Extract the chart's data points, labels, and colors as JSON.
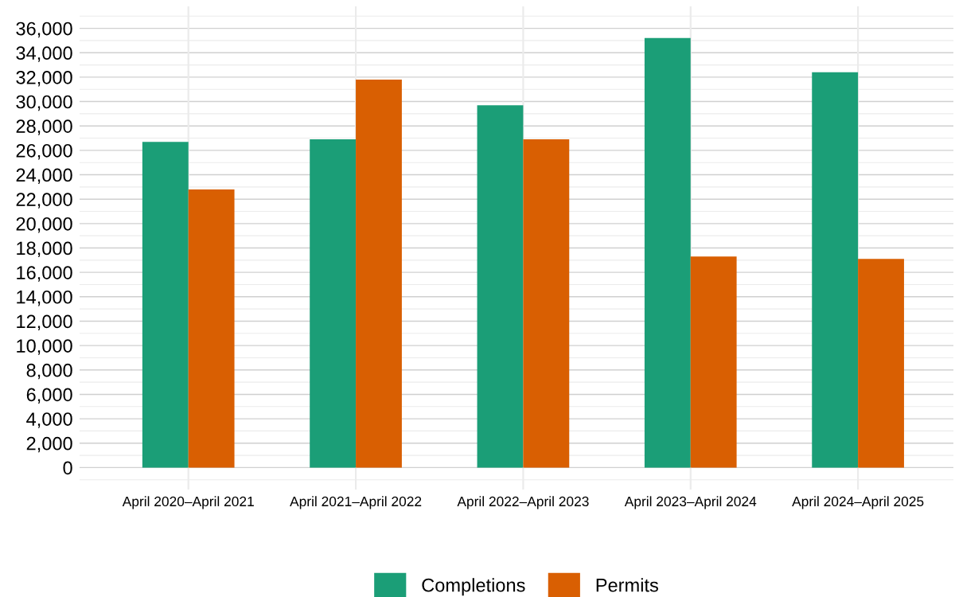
{
  "chart_data": {
    "type": "bar",
    "categories": [
      "April 2020–April 2021",
      "April 2021–April 2022",
      "April 2022–April 2023",
      "April 2023–April 2024",
      "April 2024–April 2025"
    ],
    "series": [
      {
        "name": "Completions",
        "color": "#1b9e77",
        "values": [
          26700,
          26900,
          29700,
          35200,
          32400
        ]
      },
      {
        "name": "Permits",
        "color": "#d95f02",
        "values": [
          22800,
          31800,
          26900,
          17300,
          17100
        ]
      }
    ],
    "ylim": [
      -1800,
      37800
    ],
    "yticks": [
      {
        "value": 0,
        "label": "0"
      },
      {
        "value": 2000,
        "label": "2,000"
      },
      {
        "value": 4000,
        "label": "4,000"
      },
      {
        "value": 6000,
        "label": "6,000"
      },
      {
        "value": 8000,
        "label": "8,000"
      },
      {
        "value": 10000,
        "label": "10,000"
      },
      {
        "value": 12000,
        "label": "12,000"
      },
      {
        "value": 14000,
        "label": "14,000"
      },
      {
        "value": 16000,
        "label": "16,000"
      },
      {
        "value": 18000,
        "label": "18,000"
      },
      {
        "value": 20000,
        "label": "20,000"
      },
      {
        "value": 22000,
        "label": "22,000"
      },
      {
        "value": 24000,
        "label": "24,000"
      },
      {
        "value": 26000,
        "label": "26,000"
      },
      {
        "value": 28000,
        "label": "28,000"
      },
      {
        "value": 30000,
        "label": "30,000"
      },
      {
        "value": 32000,
        "label": "32,000"
      },
      {
        "value": 34000,
        "label": "34,000"
      },
      {
        "value": 36000,
        "label": "36,000"
      }
    ],
    "grid": true,
    "legend": "bottom"
  }
}
